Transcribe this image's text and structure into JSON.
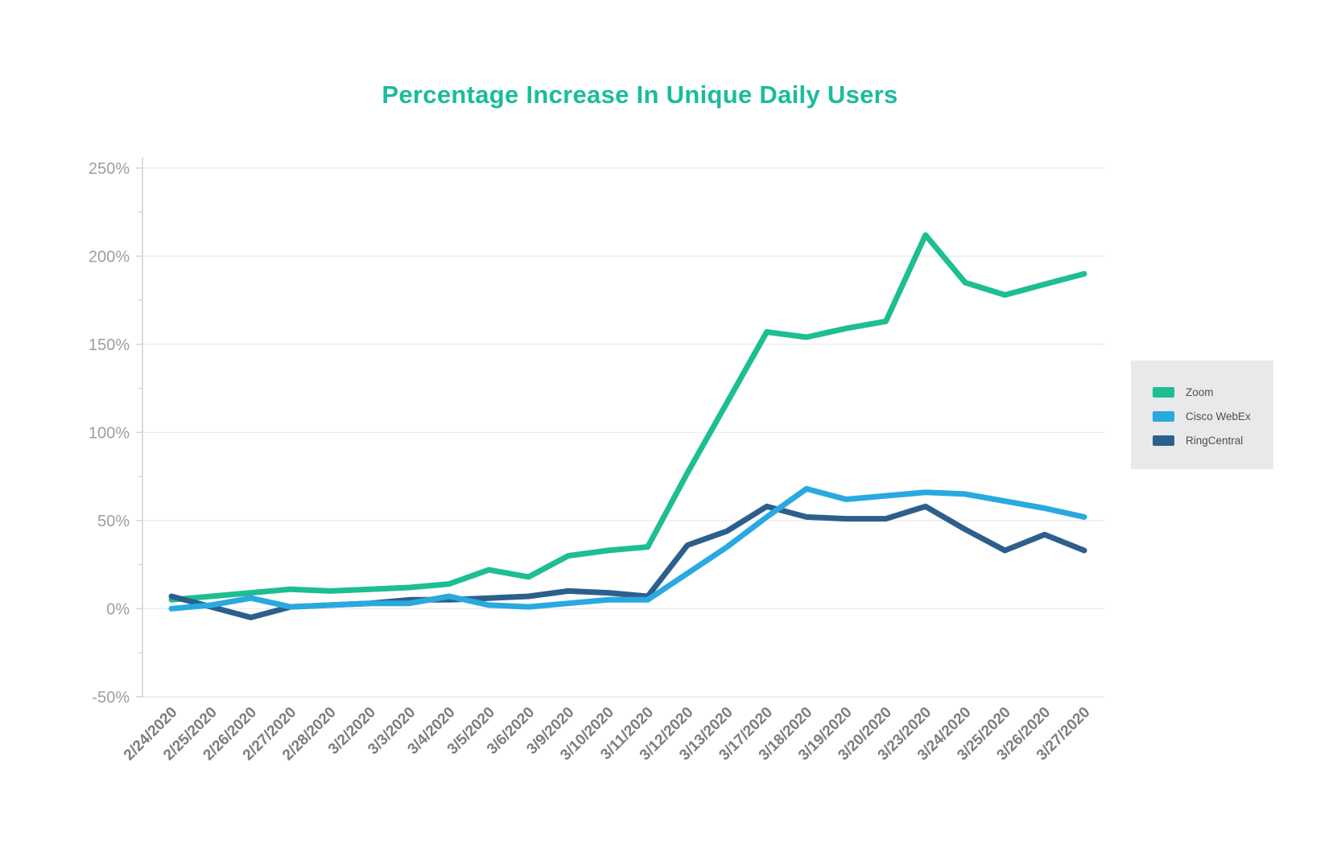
{
  "page": {
    "background": "#FFFFFF"
  },
  "chart_data": {
    "type": "line",
    "title": "Percentage Increase In Unique Daily Users",
    "title_color": "#1ABC9C",
    "categories": [
      "2/24/2020",
      "2/25/2020",
      "2/26/2020",
      "2/27/2020",
      "2/28/2020",
      "3/2/2020",
      "3/3/2020",
      "3/4/2020",
      "3/5/2020",
      "3/6/2020",
      "3/9/2020",
      "3/10/2020",
      "3/11/2020",
      "3/12/2020",
      "3/13/2020",
      "3/17/2020",
      "3/18/2020",
      "3/19/2020",
      "3/20/2020",
      "3/23/2020",
      "3/24/2020",
      "3/25/2020",
      "3/26/2020",
      "3/27/2020"
    ],
    "series": [
      {
        "name": "Zoom",
        "color": "#1DBE92",
        "values": [
          5,
          7,
          9,
          11,
          10,
          11,
          12,
          14,
          22,
          18,
          30,
          33,
          35,
          77,
          117,
          157,
          154,
          159,
          163,
          212,
          185,
          178,
          184,
          190
        ]
      },
      {
        "name": "Cisco WebEx",
        "color": "#29A9E0",
        "values": [
          0,
          2,
          6,
          1,
          2,
          3,
          3,
          7,
          2,
          1,
          3,
          5,
          5,
          20,
          35,
          52,
          68,
          62,
          64,
          66,
          65,
          61,
          57,
          52
        ]
      },
      {
        "name": "RingCentral",
        "color": "#2D5F8C",
        "values": [
          7,
          1,
          -5,
          1,
          2,
          3,
          5,
          5,
          6,
          7,
          10,
          9,
          7,
          36,
          44,
          58,
          52,
          51,
          51,
          58,
          45,
          33,
          42,
          33
        ]
      }
    ],
    "ylim": [
      -50,
      250
    ],
    "ytick_step": 50,
    "ytick_minor_step": 25,
    "ytick_labels": [
      "-50%",
      "0%",
      "50%",
      "100%",
      "150%",
      "200%",
      "250%"
    ],
    "grid": "horizontal",
    "legend_position": "right",
    "axis_color": "#D4D4D4",
    "grid_color": "#EBEBEB",
    "ytick_label_color": "#9E9E9E",
    "xtick_label_color": "#7D7D7D"
  }
}
